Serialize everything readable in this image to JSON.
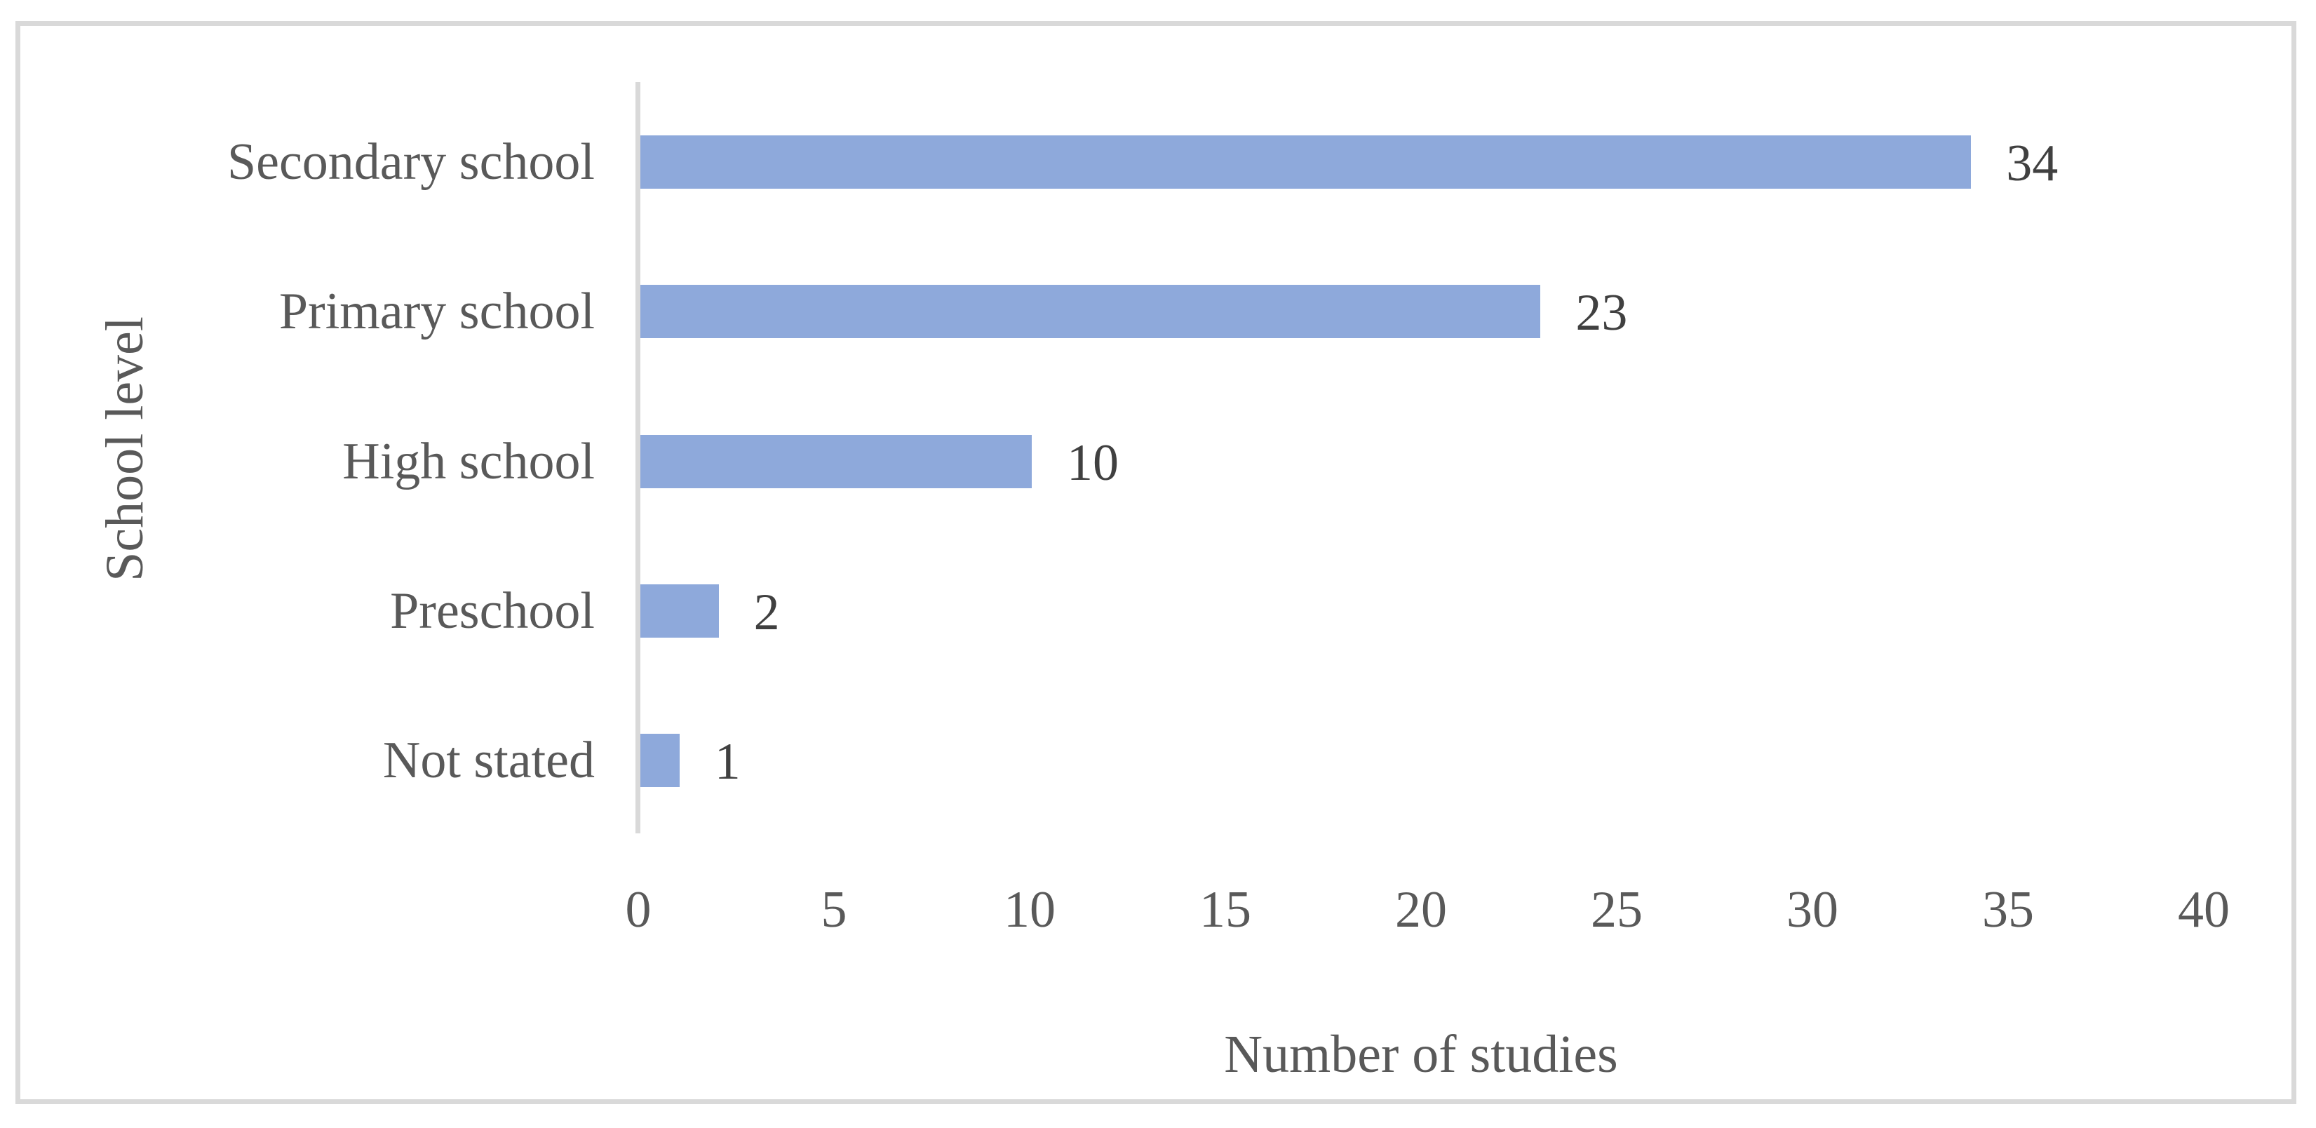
{
  "figure": {
    "background_color": "#ffffff",
    "frame_border_color": "#d9d9d9"
  },
  "chart_data": {
    "type": "bar",
    "orientation": "horizontal",
    "title": "",
    "categories": [
      "Secondary school",
      "Primary school",
      "High school",
      "Preschool",
      "Not stated"
    ],
    "values": [
      34,
      23,
      10,
      2,
      1
    ],
    "data_labels": [
      "34",
      "23",
      "10",
      "2",
      "1"
    ],
    "xlabel": "Number of studies",
    "ylabel": "School level",
    "xlim": [
      0,
      40
    ],
    "x_ticks": [
      0,
      5,
      10,
      15,
      20,
      25,
      30,
      35,
      40
    ],
    "grid": false,
    "legend": false,
    "bar_color": "#8ea9db",
    "axis_line_color": "#d9d9d9",
    "category_label_color": "#595959",
    "tick_label_color": "#595959",
    "value_label_color": "#404040"
  }
}
